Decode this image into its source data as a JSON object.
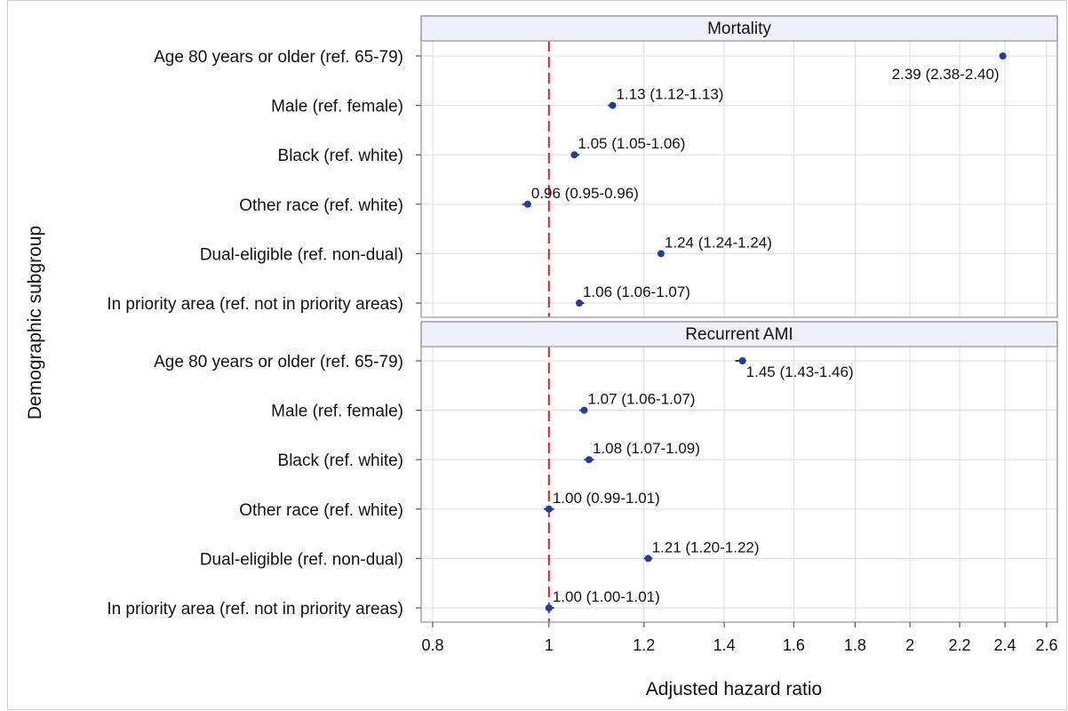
{
  "chart_data": {
    "type": "scatter",
    "subtype": "forest-plot",
    "xlabel": "Adjusted hazard ratio",
    "ylabel": "Demographic subgroup",
    "x_scale": "log",
    "xlim": [
      0.8,
      2.6
    ],
    "xticks": [
      0.8,
      1,
      1.2,
      1.4,
      1.6,
      1.8,
      2,
      2.2,
      2.4,
      2.6
    ],
    "xtick_labels": [
      "0.8",
      "1",
      "1.2",
      "1.4",
      "1.6",
      "1.8",
      "2",
      "2.2",
      "2.4",
      "2.6"
    ],
    "reference_line": 1,
    "grid": true,
    "colors": {
      "point": "#1f3f99",
      "reference_line": "#e02020",
      "grid": "#e2e2e2",
      "strip": "#eef1fa"
    },
    "panels": [
      {
        "title": "Mortality",
        "rows": [
          {
            "label": "Age 80 years or older (ref. 65-79)",
            "hr": 2.39,
            "lo": 2.38,
            "hi": 2.4,
            "text": "2.39 (2.38-2.40)"
          },
          {
            "label": "Male (ref. female)",
            "hr": 1.13,
            "lo": 1.12,
            "hi": 1.13,
            "text": "1.13 (1.12-1.13)"
          },
          {
            "label": "Black (ref. white)",
            "hr": 1.05,
            "lo": 1.05,
            "hi": 1.06,
            "text": "1.05 (1.05-1.06)"
          },
          {
            "label": "Other race (ref. white)",
            "hr": 0.96,
            "lo": 0.95,
            "hi": 0.96,
            "text": "0.96 (0.95-0.96)"
          },
          {
            "label": "Dual-eligible (ref. non-dual)",
            "hr": 1.24,
            "lo": 1.24,
            "hi": 1.24,
            "text": "1.24 (1.24-1.24)"
          },
          {
            "label": "In priority area (ref. not in priority areas)",
            "hr": 1.06,
            "lo": 1.06,
            "hi": 1.07,
            "text": "1.06 (1.06-1.07)"
          }
        ]
      },
      {
        "title": "Recurrent AMI",
        "rows": [
          {
            "label": "Age 80 years or older (ref. 65-79)",
            "hr": 1.45,
            "lo": 1.43,
            "hi": 1.46,
            "text": "1.45 (1.43-1.46)"
          },
          {
            "label": "Male (ref. female)",
            "hr": 1.07,
            "lo": 1.06,
            "hi": 1.07,
            "text": "1.07 (1.06-1.07)"
          },
          {
            "label": "Black (ref. white)",
            "hr": 1.08,
            "lo": 1.07,
            "hi": 1.09,
            "text": "1.08 (1.07-1.09)"
          },
          {
            "label": "Other race (ref. white)",
            "hr": 1.0,
            "lo": 0.99,
            "hi": 1.01,
            "text": "1.00 (0.99-1.01)"
          },
          {
            "label": "Dual-eligible (ref. non-dual)",
            "hr": 1.21,
            "lo": 1.2,
            "hi": 1.22,
            "text": "1.21 (1.20-1.22)"
          },
          {
            "label": "In priority area (ref. not in priority areas)",
            "hr": 1.0,
            "lo": 1.0,
            "hi": 1.01,
            "text": "1.00 (1.00-1.01)"
          }
        ]
      }
    ]
  }
}
